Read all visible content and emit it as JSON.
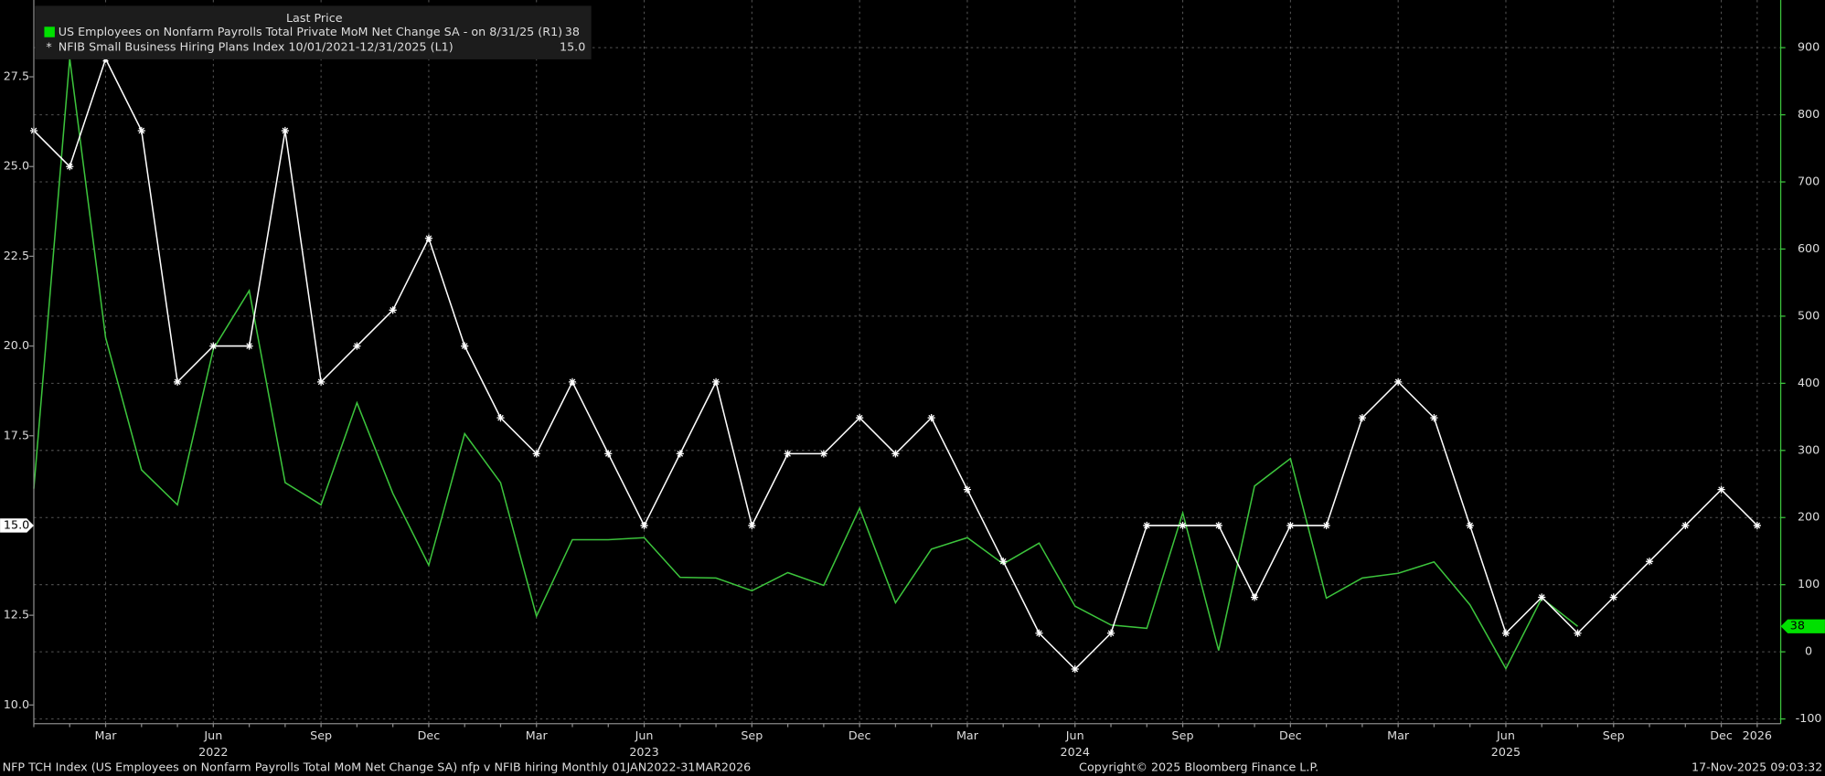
{
  "chart_data": {
    "type": "line",
    "legend_header": "Last Price",
    "categories": [
      null,
      null,
      "Mar",
      null,
      null,
      "Jun",
      null,
      null,
      "Sep",
      null,
      null,
      "Dec",
      null,
      null,
      "Mar",
      null,
      null,
      "Jun",
      null,
      null,
      "Sep",
      null,
      null,
      "Dec",
      null,
      null,
      "Mar",
      null,
      null,
      "Jun",
      null,
      null,
      "Sep",
      null,
      null,
      "Dec",
      null,
      null,
      "Mar",
      null,
      null,
      "Jun",
      null,
      null,
      "Sep",
      null,
      null,
      "Dec",
      "2026"
    ],
    "category_years": [
      null,
      null,
      null,
      null,
      null,
      "2022",
      null,
      null,
      null,
      null,
      null,
      null,
      null,
      null,
      null,
      null,
      null,
      "2023",
      null,
      null,
      null,
      null,
      null,
      null,
      null,
      null,
      null,
      null,
      null,
      "2024",
      null,
      null,
      null,
      null,
      null,
      null,
      null,
      null,
      null,
      null,
      null,
      "2025",
      null,
      null,
      null,
      null,
      null,
      null,
      null
    ],
    "series": [
      {
        "name": "US Employees on Nonfarm Payrolls Total Private MoM Net Change SA -  on 8/31/25  (R1)",
        "last_value": 38,
        "color": "#3cc43c",
        "legend_color": "#00e000",
        "axis": "y2",
        "values": [
          243,
          884,
          468,
          271,
          219,
          451,
          538,
          252,
          219,
          371,
          236,
          129,
          325,
          252,
          53,
          167,
          167,
          170,
          111,
          110,
          91,
          118,
          99,
          214,
          73,
          153,
          170,
          131,
          162,
          68,
          40,
          35,
          207,
          2,
          247,
          288,
          80,
          110,
          117,
          134,
          70,
          -25,
          80,
          38,
          null,
          null,
          null,
          null,
          null
        ]
      },
      {
        "name": "NFIB Small Business Hiring Plans Index 10/01/2021-12/31/2025  (L1)",
        "last_value": {
          "value": 15,
          "label": "15.0"
        },
        "color": "#ffffff",
        "axis": "y",
        "values": [
          26,
          25,
          28,
          26,
          19,
          20,
          20,
          26,
          19,
          20,
          21,
          23,
          20,
          18,
          17,
          19,
          17,
          15,
          17,
          19,
          15,
          17,
          17,
          18,
          17,
          18,
          16,
          14,
          12,
          11,
          12,
          15,
          15,
          15,
          13,
          15,
          15,
          18,
          19,
          18,
          15,
          12,
          13,
          12,
          13,
          14,
          15,
          16,
          15
        ]
      }
    ],
    "ylim": [
      9.48,
      29.64
    ],
    "yticks": [
      {
        "value": 10,
        "label": "10.0"
      },
      {
        "value": 12.5,
        "label": "12.5"
      },
      {
        "value": 15,
        "label": "15.0"
      },
      {
        "value": 17.5,
        "label": "17.5"
      },
      {
        "value": 20,
        "label": "20.0"
      },
      {
        "value": 22.5,
        "label": "22.5"
      },
      {
        "value": 25,
        "label": "25.0"
      },
      {
        "value": 27.5,
        "label": "27.5"
      }
    ],
    "y2lim": [
      -107,
      971
    ],
    "y2ticks": [
      -100,
      0,
      100,
      200,
      300,
      400,
      500,
      600,
      700,
      800,
      900
    ],
    "grid": true,
    "footer_left": "NFP TCH Index (US Employees on Nonfarm Payrolls Total MoM Net Change SA) nfp v NFIB hiring Monthly 01JAN2022-31MAR2026",
    "footer_center": "Copyright© 2025 Bloomberg Finance L.P.",
    "footer_right": "17-Nov-2025 09:03:32"
  }
}
